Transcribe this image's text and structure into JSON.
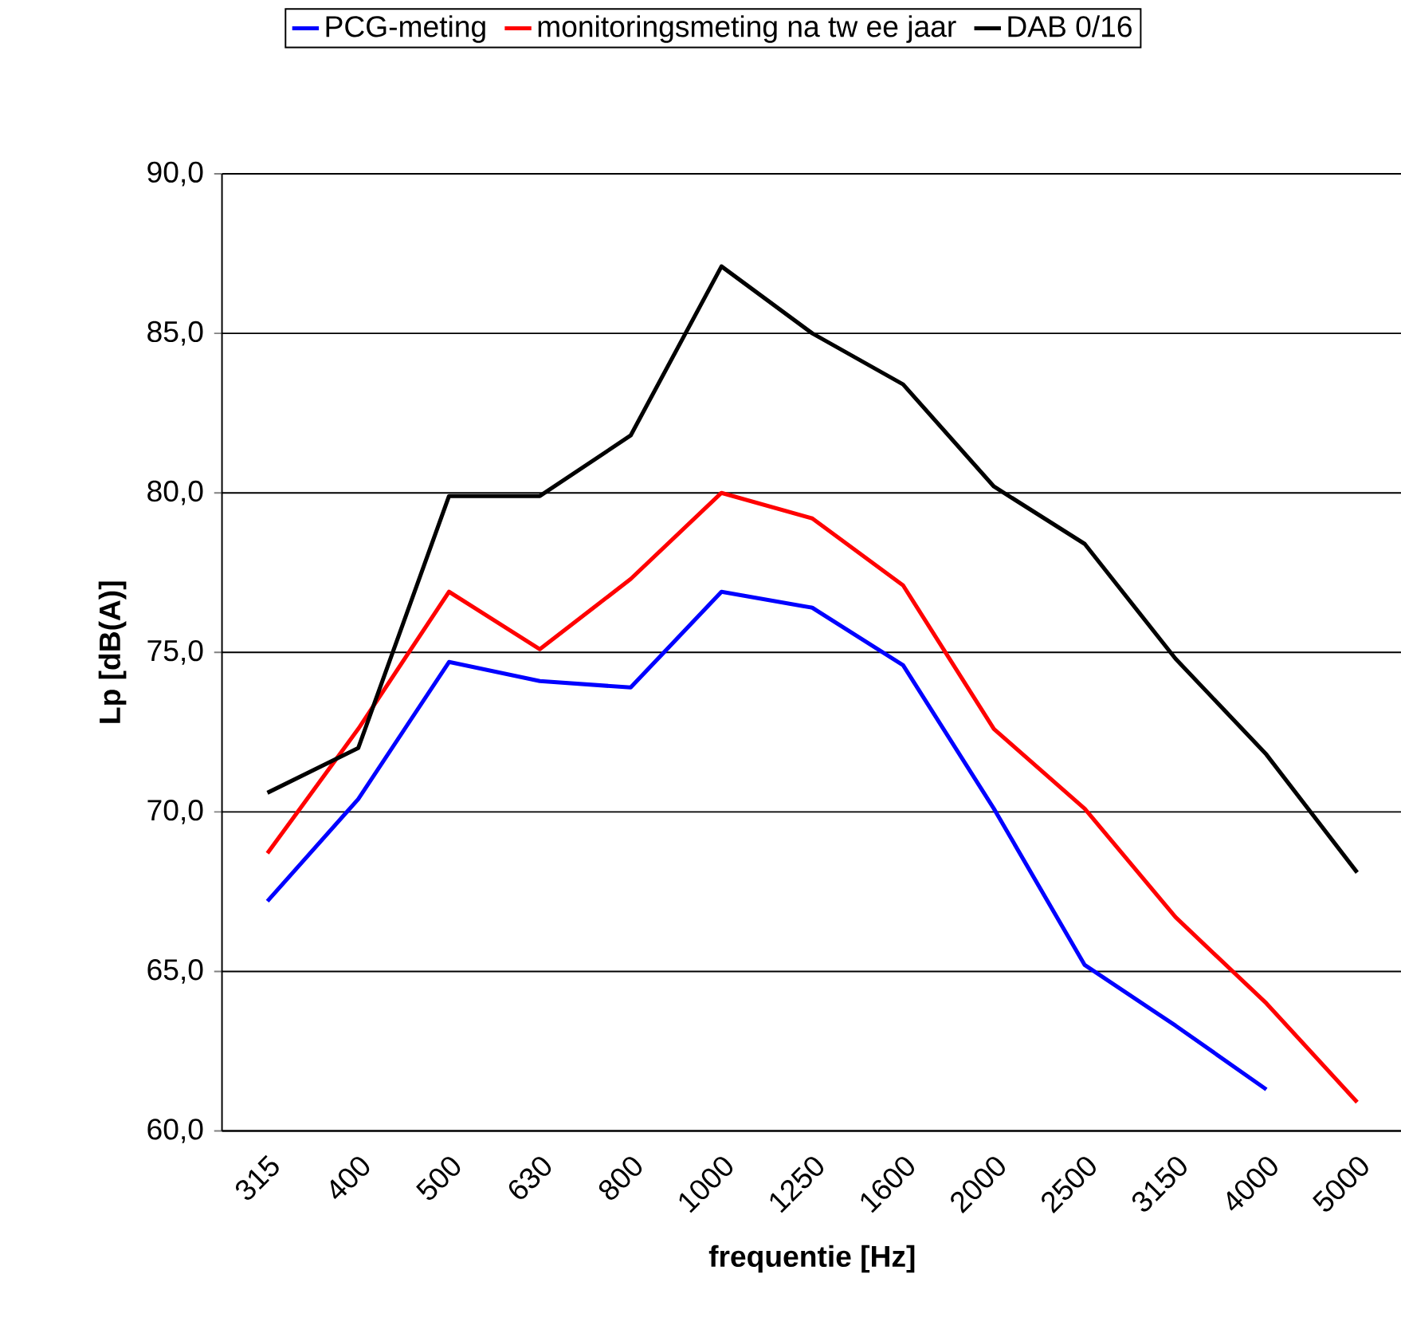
{
  "chart_data": {
    "type": "line",
    "xlabel": "frequentie [Hz]",
    "ylabel": "Lp [dB(A)]",
    "categories": [
      "315",
      "400",
      "500",
      "630",
      "800",
      "1000",
      "1250",
      "1600",
      "2000",
      "2500",
      "3150",
      "4000",
      "5000"
    ],
    "series": [
      {
        "name": "PCG-meting",
        "color": "#0000ff",
        "values": [
          67.2,
          70.4,
          74.7,
          74.1,
          73.9,
          76.9,
          76.4,
          74.6,
          70.1,
          65.2,
          63.3,
          61.3,
          null
        ]
      },
      {
        "name": "monitoringsmeting na tw ee jaar",
        "color": "#ff0000",
        "values": [
          68.7,
          72.6,
          76.9,
          75.1,
          77.3,
          80.0,
          79.2,
          77.1,
          72.6,
          70.1,
          66.7,
          64.0,
          60.9
        ]
      },
      {
        "name": "DAB 0/16",
        "color": "#000000",
        "values": [
          70.6,
          72.0,
          79.9,
          79.9,
          81.8,
          87.1,
          85.0,
          83.4,
          80.2,
          78.4,
          74.8,
          71.8,
          68.1
        ]
      }
    ],
    "ylim": [
      60,
      90
    ],
    "yticks": [
      {
        "value": 60,
        "label": "60,0"
      },
      {
        "value": 65,
        "label": "65,0"
      },
      {
        "value": 70,
        "label": "70,0"
      },
      {
        "value": 75,
        "label": "75,0"
      },
      {
        "value": 80,
        "label": "80,0"
      },
      {
        "value": 85,
        "label": "85,0"
      },
      {
        "value": 90,
        "label": "90,0"
      }
    ],
    "grid": "y",
    "legend": "top",
    "marker": "none",
    "line_style": "solid"
  }
}
